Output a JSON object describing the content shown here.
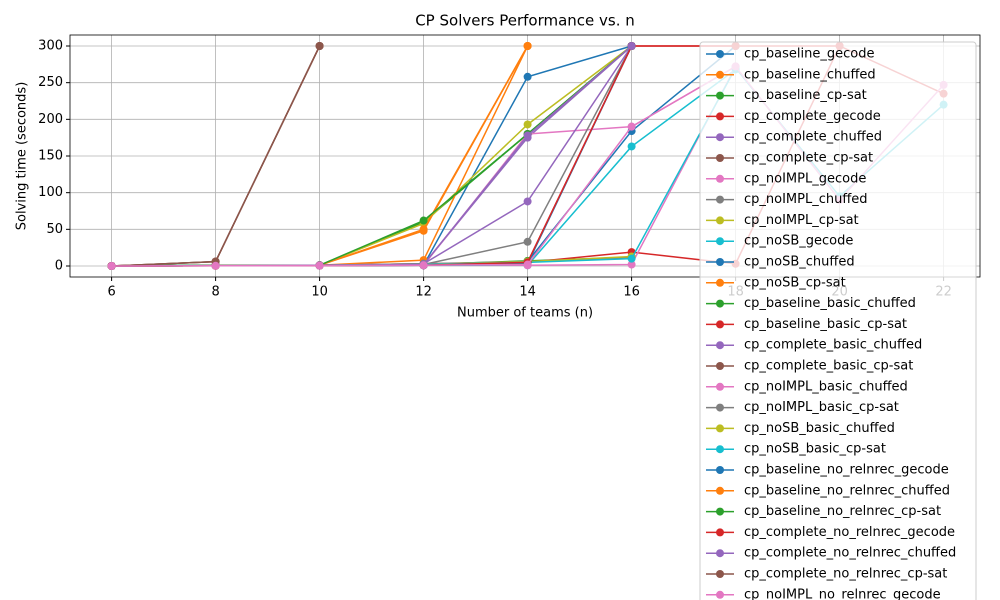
{
  "chart_data": {
    "type": "line",
    "title": "CP Solvers Performance vs. n",
    "x_label": "Number of teams (n)",
    "y_label": "Solving time (seconds)",
    "x": [
      6,
      8,
      10,
      12,
      14,
      16,
      18,
      20,
      22
    ],
    "xlim": [
      5.2,
      22.7
    ],
    "ylim": [
      -15,
      315
    ],
    "xticks": [
      6,
      8,
      10,
      12,
      14,
      16,
      18,
      20,
      22
    ],
    "yticks": [
      0,
      50,
      100,
      150,
      200,
      250,
      300
    ],
    "grid": true,
    "legend": "upper right",
    "series": [
      {
        "name": "cp_baseline_gecode",
        "color": "#1f77b4",
        "values": [
          0,
          0.5,
          0.5,
          1,
          258,
          300,
          null,
          null,
          null
        ]
      },
      {
        "name": "cp_baseline_chuffed",
        "color": "#ff7f0e",
        "values": [
          0,
          0.3,
          1,
          48,
          300,
          null,
          null,
          null,
          null
        ]
      },
      {
        "name": "cp_baseline_cp-sat",
        "color": "#2ca02c",
        "values": [
          0,
          1,
          1,
          60,
          180,
          300,
          null,
          null,
          null
        ]
      },
      {
        "name": "cp_complete_gecode",
        "color": "#d62728",
        "values": [
          0,
          0.5,
          0.5,
          1,
          5,
          300,
          300,
          300,
          null
        ]
      },
      {
        "name": "cp_complete_chuffed",
        "color": "#9467bd",
        "values": [
          0,
          0.5,
          1,
          2,
          175,
          300,
          null,
          null,
          null
        ]
      },
      {
        "name": "cp_complete_cp-sat",
        "color": "#8c564b",
        "values": [
          0,
          6,
          300,
          null,
          null,
          null,
          null,
          null,
          null
        ]
      },
      {
        "name": "cp_noIMPL_gecode",
        "color": "#e377c2",
        "values": [
          0,
          0.3,
          0.5,
          1,
          180,
          190,
          272,
          null,
          null
        ]
      },
      {
        "name": "cp_noIMPL_chuffed",
        "color": "#7f7f7f",
        "values": [
          0,
          0.5,
          1,
          2,
          33,
          300,
          null,
          null,
          null
        ]
      },
      {
        "name": "cp_noIMPL_cp-sat",
        "color": "#bcbd22",
        "values": [
          0,
          1,
          1,
          58,
          193,
          300,
          null,
          null,
          null
        ]
      },
      {
        "name": "cp_noSB_gecode",
        "color": "#17becf",
        "values": [
          0,
          0.3,
          0.5,
          1,
          1,
          163,
          268,
          null,
          null
        ]
      },
      {
        "name": "cp_noSB_chuffed",
        "color": "#1f77b4",
        "values": [
          0,
          0.5,
          1,
          1,
          6,
          184,
          300,
          null,
          null
        ]
      },
      {
        "name": "cp_noSB_cp-sat",
        "color": "#ff7f0e",
        "values": [
          0,
          1,
          1,
          8,
          300,
          null,
          null,
          null,
          null
        ]
      },
      {
        "name": "cp_baseline_basic_chuffed",
        "color": "#2ca02c",
        "values": [
          0,
          0.5,
          1,
          2,
          7,
          12,
          null,
          null,
          null
        ]
      },
      {
        "name": "cp_baseline_basic_cp-sat",
        "color": "#d62728",
        "values": [
          0,
          1,
          1,
          3,
          5,
          19,
          3,
          300,
          235
        ]
      },
      {
        "name": "cp_complete_basic_chuffed",
        "color": "#9467bd",
        "values": [
          0,
          0.5,
          1,
          3,
          88,
          300,
          null,
          null,
          null
        ]
      },
      {
        "name": "cp_complete_basic_cp-sat",
        "color": "#8c564b",
        "values": [
          0,
          6,
          300,
          null,
          null,
          null,
          null,
          null,
          null
        ]
      },
      {
        "name": "cp_noIMPL_basic_chuffed",
        "color": "#e377c2",
        "values": [
          0,
          0.5,
          1,
          2,
          1,
          2,
          272,
          null,
          null
        ]
      },
      {
        "name": "cp_noIMPL_basic_cp-sat",
        "color": "#7f7f7f",
        "values": [
          0,
          1,
          1,
          3,
          6,
          12,
          null,
          null,
          null
        ]
      },
      {
        "name": "cp_noSB_basic_chuffed",
        "color": "#bcbd22",
        "values": [
          0,
          0.5,
          1,
          2,
          6,
          13,
          null,
          null,
          null
        ]
      },
      {
        "name": "cp_noSB_basic_cp-sat",
        "color": "#17becf",
        "values": [
          0,
          1,
          1,
          2,
          5,
          10,
          270,
          95,
          220
        ]
      },
      {
        "name": "cp_baseline_no_relnrec_gecode",
        "color": "#1f77b4",
        "values": [
          0,
          0.5,
          0.5,
          1,
          3,
          300,
          null,
          null,
          null
        ]
      },
      {
        "name": "cp_baseline_no_relnrec_chuffed",
        "color": "#ff7f0e",
        "values": [
          0,
          0.3,
          1,
          50,
          300,
          null,
          null,
          null,
          null
        ]
      },
      {
        "name": "cp_baseline_no_relnrec_cp-sat",
        "color": "#2ca02c",
        "values": [
          0,
          1,
          1,
          62,
          180,
          300,
          null,
          null,
          null
        ]
      },
      {
        "name": "cp_complete_no_relnrec_gecode",
        "color": "#d62728",
        "values": [
          0,
          0.5,
          0.5,
          1,
          5,
          300,
          300,
          null,
          null
        ]
      },
      {
        "name": "cp_complete_no_relnrec_chuffed",
        "color": "#9467bd",
        "values": [
          0,
          0.5,
          1,
          2,
          178,
          300,
          null,
          null,
          null
        ]
      },
      {
        "name": "cp_complete_no_relnrec_cp-sat",
        "color": "#8c564b",
        "values": [
          0,
          6,
          300,
          null,
          null,
          null,
          null,
          null,
          null
        ]
      },
      {
        "name": "cp_noIMPL_no_relnrec_gecode",
        "color": "#e377c2",
        "values": [
          0,
          0.3,
          0.5,
          1,
          2,
          190,
          272,
          90,
          247
        ]
      }
    ]
  }
}
